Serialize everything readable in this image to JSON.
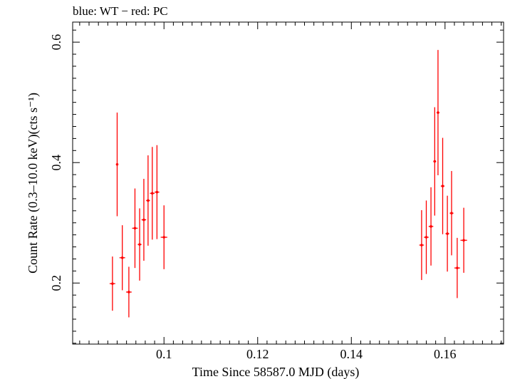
{
  "chart_data": {
    "type": "scatter",
    "title": "blue: WT − red: PC",
    "xlabel": "Time Since 58587.0 MJD (days)",
    "ylabel": "Count Rate (0.3–10.0 keV)(cts s⁻¹)",
    "xlim": [
      0.0805,
      0.1725
    ],
    "ylim": [
      0.0986,
      0.6333
    ],
    "xticks": [
      0.1,
      0.12,
      0.14,
      0.16
    ],
    "xtick_labels": [
      "0.1",
      "0.12",
      "0.14",
      "0.16"
    ],
    "yticks": [
      0.2,
      0.4,
      0.6
    ],
    "ytick_labels": [
      "0.2",
      "0.4",
      "0.6"
    ],
    "grid": false,
    "series": [
      {
        "color": "#ff0000",
        "points": [
          {
            "x": 0.089,
            "xerr": 0.0006,
            "y": 0.199,
            "yerr_lo": 0.045,
            "yerr_hi": 0.045
          },
          {
            "x": 0.09,
            "xerr": 0.0002,
            "y": 0.397,
            "yerr_lo": 0.086,
            "yerr_hi": 0.086
          },
          {
            "x": 0.0911,
            "xerr": 0.0006,
            "y": 0.242,
            "yerr_lo": 0.054,
            "yerr_hi": 0.054
          },
          {
            "x": 0.0925,
            "xerr": 0.0006,
            "y": 0.185,
            "yerr_lo": 0.042,
            "yerr_hi": 0.042
          },
          {
            "x": 0.0938,
            "xerr": 0.0006,
            "y": 0.291,
            "yerr_lo": 0.066,
            "yerr_hi": 0.066
          },
          {
            "x": 0.0948,
            "xerr": 0.0004,
            "y": 0.264,
            "yerr_lo": 0.06,
            "yerr_hi": 0.06
          },
          {
            "x": 0.0957,
            "xerr": 0.0005,
            "y": 0.305,
            "yerr_lo": 0.068,
            "yerr_hi": 0.068
          },
          {
            "x": 0.0966,
            "xerr": 0.0004,
            "y": 0.337,
            "yerr_lo": 0.075,
            "yerr_hi": 0.075
          },
          {
            "x": 0.0975,
            "xerr": 0.0005,
            "y": 0.349,
            "yerr_lo": 0.077,
            "yerr_hi": 0.077
          },
          {
            "x": 0.0985,
            "xerr": 0.0005,
            "y": 0.351,
            "yerr_lo": 0.078,
            "yerr_hi": 0.078
          },
          {
            "x": 0.1,
            "xerr": 0.0007,
            "y": 0.276,
            "yerr_lo": 0.053,
            "yerr_hi": 0.053
          },
          {
            "x": 0.155,
            "xerr": 0.0005,
            "y": 0.263,
            "yerr_lo": 0.058,
            "yerr_hi": 0.058
          },
          {
            "x": 0.156,
            "xerr": 0.0005,
            "y": 0.276,
            "yerr_lo": 0.061,
            "yerr_hi": 0.061
          },
          {
            "x": 0.157,
            "xerr": 0.0005,
            "y": 0.294,
            "yerr_lo": 0.065,
            "yerr_hi": 0.065
          },
          {
            "x": 0.1578,
            "xerr": 0.0003,
            "y": 0.402,
            "yerr_lo": 0.09,
            "yerr_hi": 0.09
          },
          {
            "x": 0.1585,
            "xerr": 0.0003,
            "y": 0.483,
            "yerr_lo": 0.104,
            "yerr_hi": 0.104
          },
          {
            "x": 0.1595,
            "xerr": 0.0004,
            "y": 0.361,
            "yerr_lo": 0.08,
            "yerr_hi": 0.08
          },
          {
            "x": 0.1605,
            "xerr": 0.0004,
            "y": 0.282,
            "yerr_lo": 0.063,
            "yerr_hi": 0.063
          },
          {
            "x": 0.1614,
            "xerr": 0.0004,
            "y": 0.316,
            "yerr_lo": 0.07,
            "yerr_hi": 0.07
          },
          {
            "x": 0.1626,
            "xerr": 0.0006,
            "y": 0.225,
            "yerr_lo": 0.05,
            "yerr_hi": 0.05
          },
          {
            "x": 0.164,
            "xerr": 0.0007,
            "y": 0.271,
            "yerr_lo": 0.054,
            "yerr_hi": 0.054
          }
        ]
      }
    ]
  }
}
